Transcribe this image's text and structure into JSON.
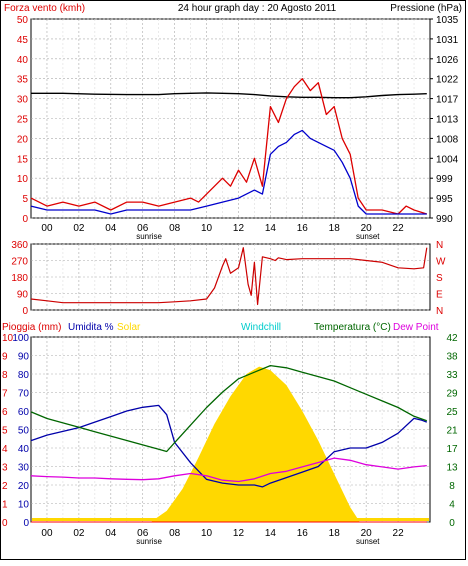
{
  "colors": {
    "wind_speed": "#dd0000",
    "wind_avg": "#0000cc",
    "pressure": "#000000",
    "direction": "#cc0000",
    "humidity": "#0000aa",
    "solar": "#ffd800",
    "temperature": "#006600",
    "dew_point": "#dd00dd",
    "rain": "#ff0000",
    "grid": "#aaaaaa",
    "windchill_label": "#00cccc",
    "label_red": "#dd0000",
    "label_green": "#006600"
  },
  "header": {
    "left": "Forza vento (kmh)",
    "center": "24 hour graph day : 20 Agosto 2011",
    "right": "Pressione (hPa)"
  },
  "bottom_header": {
    "rain": "Pioggia (mm)",
    "humidity": "Umidita %",
    "solar": "Solar",
    "windchill": "Windchill",
    "temperature": "Temperatura (°C)",
    "dew_point": "Dew Point"
  },
  "x_ticks": [
    "00",
    "02",
    "04",
    "06",
    "08",
    "10",
    "12",
    "14",
    "16",
    "18",
    "20",
    "22"
  ],
  "sunrise_label": "sunrise",
  "sunset_label": "sunset",
  "chart_data": [
    {
      "type": "line",
      "title": "24 hour graph day : 20 Agosto 2011",
      "x_range_hours": [
        -1,
        24
      ],
      "left_axis": {
        "label": "Forza vento (kmh)",
        "ticks": [
          "0",
          "5",
          "10",
          "15",
          "20",
          "25",
          "30",
          "35",
          "40",
          "45",
          "50"
        ],
        "ylim": [
          0,
          50
        ]
      },
      "right_axis": {
        "label": "Pressione (hPa)",
        "ticks": [
          "990",
          "995",
          "999",
          "1004",
          "1008",
          "1013",
          "1017",
          "1022",
          "1026",
          "1031",
          "1035"
        ],
        "ylim": [
          990,
          1035
        ]
      },
      "series": [
        {
          "key": "pressure",
          "axis": "right",
          "x": [
            -1,
            1,
            3,
            5,
            7,
            8,
            9,
            10,
            11,
            12,
            13,
            14,
            15,
            16,
            17,
            18,
            19,
            20,
            21,
            22,
            23,
            23.8
          ],
          "y": [
            1018.2,
            1018.2,
            1018.0,
            1017.9,
            1017.9,
            1018.1,
            1018.2,
            1018.3,
            1018.2,
            1018.1,
            1017.9,
            1017.6,
            1017.4,
            1017.3,
            1017.3,
            1017.2,
            1017.2,
            1017.4,
            1017.7,
            1017.9,
            1018.0,
            1018.1
          ]
        },
        {
          "key": "wind_speed",
          "axis": "left",
          "x": [
            -1,
            0,
            1,
            2,
            3,
            4,
            5,
            6,
            7,
            8,
            9,
            9.5,
            10,
            10.5,
            11,
            11.5,
            12,
            12.5,
            13,
            13.5,
            14,
            14.5,
            15,
            15.5,
            16,
            16.5,
            17,
            17.5,
            18,
            18.5,
            19,
            19.5,
            20,
            21,
            22,
            22.5,
            23,
            23.8
          ],
          "y": [
            5,
            3,
            4,
            3,
            4,
            2,
            4,
            4,
            3,
            4,
            5,
            4,
            6,
            8,
            10,
            8,
            12,
            9,
            15,
            8,
            28,
            24,
            30,
            33,
            35,
            32,
            34,
            26,
            28,
            20,
            16,
            5,
            2,
            2,
            1,
            3,
            2,
            1
          ]
        },
        {
          "key": "wind_avg",
          "axis": "left",
          "x": [
            -1,
            0,
            1,
            2,
            3,
            4,
            5,
            6,
            7,
            8,
            9,
            10,
            11,
            12,
            13,
            13.5,
            14,
            14.5,
            15,
            15.5,
            16,
            16.5,
            17,
            17.5,
            18,
            18.5,
            19,
            19.5,
            20,
            21,
            22,
            23,
            23.8
          ],
          "y": [
            3,
            2,
            2,
            2,
            2,
            1,
            2,
            2,
            2,
            2,
            2,
            3,
            4,
            5,
            7,
            6,
            16,
            18,
            19,
            21,
            22,
            20,
            19,
            18,
            17,
            14,
            10,
            3,
            1,
            1,
            1,
            1,
            1
          ]
        }
      ]
    },
    {
      "type": "line",
      "left_axis": {
        "ticks": [
          "0",
          "90",
          "180",
          "270",
          "360"
        ],
        "ylim": [
          0,
          360
        ]
      },
      "right_axis": {
        "ticks": [
          "N",
          "E",
          "S",
          "W",
          "N"
        ]
      },
      "series": [
        {
          "key": "direction",
          "x": [
            -1,
            0,
            1,
            3,
            5,
            7,
            8,
            9,
            10,
            10.5,
            11,
            11.2,
            11.5,
            12,
            12.3,
            12.6,
            12.8,
            13,
            13.2,
            13.5,
            14,
            14.3,
            14.5,
            15,
            16,
            18,
            19,
            20,
            21,
            22,
            23,
            23.6,
            23.8
          ],
          "y": [
            60,
            50,
            40,
            40,
            40,
            40,
            45,
            50,
            60,
            120,
            240,
            280,
            200,
            230,
            340,
            140,
            80,
            260,
            30,
            290,
            280,
            270,
            285,
            275,
            280,
            280,
            280,
            270,
            260,
            230,
            225,
            230,
            340
          ]
        }
      ]
    },
    {
      "type": "line",
      "left_axis_rain": {
        "label": "Pioggia (mm)",
        "ticks": [
          "0",
          "1",
          "2",
          "3",
          "4",
          "5",
          "6",
          "7",
          "8",
          "9",
          "10"
        ],
        "ylim": [
          0,
          10
        ]
      },
      "left_axis_humidity": {
        "label": "Umidita %",
        "ticks": [
          "0",
          "10",
          "20",
          "30",
          "40",
          "50",
          "60",
          "70",
          "80",
          "90",
          "100"
        ],
        "ylim": [
          0,
          100
        ]
      },
      "right_axis_temperature": {
        "label": "Temperatura (°C)",
        "ticks": [
          "0",
          "4",
          "8",
          "13",
          "17",
          "21",
          "25",
          "29",
          "33",
          "38",
          "42"
        ],
        "ylim": [
          0,
          42
        ]
      },
      "series": [
        {
          "key": "humidity",
          "axis": "humidity",
          "x": [
            -1,
            0,
            1,
            2,
            3,
            4,
            5,
            6,
            7,
            7.5,
            8,
            9,
            10,
            11,
            12,
            13,
            13.5,
            14,
            15,
            16,
            17,
            18,
            19,
            20,
            21,
            22,
            23,
            23.5,
            23.8
          ],
          "y": [
            44,
            47,
            49,
            51,
            54,
            57,
            60,
            62,
            63,
            58,
            43,
            32,
            23,
            21,
            20,
            20,
            19,
            21,
            24,
            27,
            30,
            38,
            40,
            40,
            43,
            48,
            56,
            55,
            54
          ]
        },
        {
          "key": "temperature",
          "axis": "temperature",
          "x": [
            -1,
            0,
            1,
            2,
            3,
            4,
            5,
            6,
            7,
            7.5,
            8,
            9,
            10,
            11,
            12,
            13,
            14,
            15,
            16,
            17,
            18,
            19,
            20,
            21,
            22,
            23,
            23.8
          ],
          "y": [
            25,
            23.5,
            22.5,
            21.5,
            20.5,
            19.5,
            18.5,
            17.5,
            16.5,
            16,
            18,
            22,
            26,
            29.5,
            32.5,
            34,
            35.5,
            35,
            34,
            33,
            32,
            30.5,
            29,
            27.5,
            26,
            24,
            23
          ]
        },
        {
          "key": "dew_point",
          "axis": "temperature",
          "x": [
            -1,
            0,
            1,
            2,
            3,
            4,
            5,
            6,
            7,
            8,
            9,
            10,
            11,
            12,
            13,
            14,
            15,
            16,
            17,
            18,
            19,
            20,
            21,
            22,
            23,
            23.8
          ],
          "y": [
            10.5,
            10.3,
            10.2,
            10.0,
            10.0,
            9.8,
            9.7,
            9.6,
            9.8,
            10.5,
            11.0,
            10.5,
            9.5,
            9.2,
            9.8,
            11.0,
            11.5,
            12.5,
            13.5,
            14.5,
            14.0,
            13.0,
            12.5,
            12.0,
            12.5,
            12.8
          ]
        },
        {
          "key": "solar",
          "x": [
            6.5,
            7.5,
            8.5,
            9.5,
            10.5,
            11.5,
            12.5,
            13.3,
            14,
            15,
            16,
            17,
            18,
            19,
            19.6
          ],
          "y": [
            0,
            0.6,
            1.8,
            3.5,
            5.3,
            6.8,
            8.0,
            8.4,
            8.2,
            7.4,
            6.0,
            4.4,
            2.6,
            0.8,
            0
          ],
          "note_units": "rain-axis scale"
        },
        {
          "key": "rain",
          "axis": "rain",
          "x": [
            -1,
            23.8
          ],
          "y": [
            0,
            0
          ]
        }
      ]
    }
  ]
}
